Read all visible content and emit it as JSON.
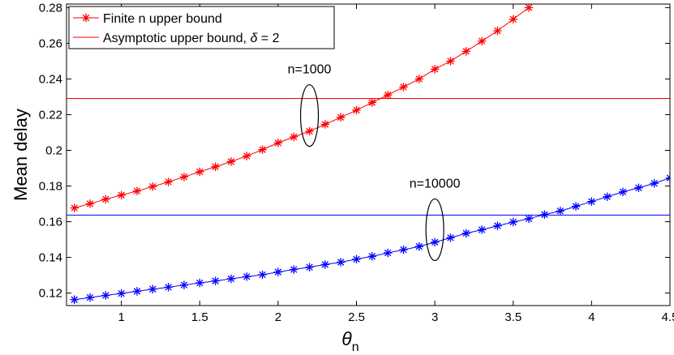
{
  "chart_data": {
    "type": "line",
    "xlabel": {
      "symbol": "θ",
      "subscript": "n"
    },
    "ylabel": "Mean delay",
    "xlim": [
      0.65,
      4.5
    ],
    "ylim": [
      0.113,
      0.282
    ],
    "xticks": [
      1,
      1.5,
      2,
      2.5,
      3,
      3.5,
      4,
      4.5
    ],
    "xtick_labels": [
      "1",
      "1.5",
      "2",
      "2.5",
      "3",
      "3.5",
      "4",
      "4.5"
    ],
    "yticks": [
      0.12,
      0.14,
      0.16,
      0.18,
      0.2,
      0.22,
      0.24,
      0.26,
      0.28
    ],
    "ytick_labels": [
      "0.12",
      "0.14",
      "0.16",
      "0.18",
      "0.2",
      "0.22",
      "0.24",
      "0.26",
      "0.28"
    ],
    "grid": false,
    "legend_position": "top-left",
    "legend": {
      "finite": "Finite n upper bound",
      "asymptotic_prefix": "Asymptotic upper bound, ",
      "asymptotic_symbol": "δ",
      "asymptotic_suffix": " = 2"
    },
    "series": [
      {
        "name": "Finite n upper bound",
        "group": "n=1000",
        "color": "#ff0000",
        "marker": "asterisk",
        "x": [
          0.7,
          0.8,
          0.9,
          1.0,
          1.1,
          1.2,
          1.3,
          1.4,
          1.5,
          1.6,
          1.7,
          1.8,
          1.9,
          2.0,
          2.1,
          2.2,
          2.3,
          2.4,
          2.5,
          2.6,
          2.7,
          2.8,
          2.9,
          3.0,
          3.1,
          3.2,
          3.3,
          3.4,
          3.5,
          3.6
        ],
        "values": [
          0.1677,
          0.1701,
          0.1726,
          0.1749,
          0.1772,
          0.1797,
          0.1823,
          0.1851,
          0.188,
          0.1908,
          0.1937,
          0.1968,
          0.2004,
          0.2042,
          0.2075,
          0.2107,
          0.2146,
          0.2185,
          0.2225,
          0.2268,
          0.231,
          0.2355,
          0.24,
          0.2455,
          0.25,
          0.2555,
          0.2612,
          0.267,
          0.2735,
          0.28
        ]
      },
      {
        "name": "Finite n upper bound",
        "group": "n=10000",
        "color": "#0000ff",
        "marker": "asterisk",
        "x": [
          0.7,
          0.8,
          0.9,
          1.0,
          1.1,
          1.2,
          1.3,
          1.4,
          1.5,
          1.6,
          1.7,
          1.8,
          1.9,
          2.0,
          2.1,
          2.2,
          2.3,
          2.4,
          2.5,
          2.6,
          2.7,
          2.8,
          2.9,
          3.0,
          3.1,
          3.2,
          3.3,
          3.4,
          3.5,
          3.6,
          3.7,
          3.8,
          3.9,
          4.0,
          4.1,
          4.2,
          4.3,
          4.4,
          4.5
        ],
        "values": [
          0.1163,
          0.1175,
          0.1187,
          0.1198,
          0.121,
          0.1222,
          0.1233,
          0.1245,
          0.1257,
          0.1268,
          0.128,
          0.1292,
          0.1303,
          0.1318,
          0.1332,
          0.1345,
          0.136,
          0.1373,
          0.139,
          0.1406,
          0.1425,
          0.1443,
          0.1461,
          0.1485,
          0.151,
          0.1535,
          0.1555,
          0.1577,
          0.1598,
          0.1617,
          0.164,
          0.166,
          0.1686,
          0.1713,
          0.174,
          0.1767,
          0.179,
          0.1815,
          0.1845
        ]
      }
    ],
    "reference_lines": [
      {
        "name": "Asymptotic upper bound, δ = 2",
        "group": "n=1000",
        "color": "#ff0000",
        "y": 0.2291
      },
      {
        "name": "Asymptotic upper bound, δ = 2",
        "group": "n=10000",
        "color": "#0000ff",
        "y": 0.1637
      }
    ],
    "annotations": [
      {
        "text": "n=1000",
        "x": 2.2,
        "y": 0.2195
      },
      {
        "text": "n=10000",
        "x": 3.0,
        "y": 0.1555
      }
    ]
  }
}
